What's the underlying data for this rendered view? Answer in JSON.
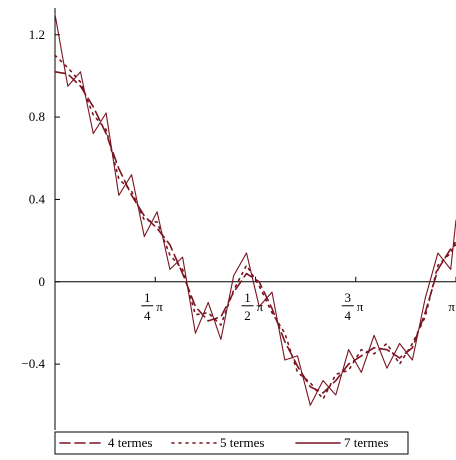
{
  "chart_data": {
    "type": "line",
    "title": "",
    "xlabel": "",
    "ylabel": "",
    "xlim": [
      0,
      3.1416
    ],
    "ylim": [
      -0.72,
      1.33
    ],
    "x_axis_crosses_y": 0,
    "y_ticks": [
      {
        "value": 1.2,
        "label": "1.2"
      },
      {
        "value": 0.8,
        "label": "0.8"
      },
      {
        "value": 0.4,
        "label": "0.4"
      },
      {
        "value": 0,
        "label": "0"
      },
      {
        "value": -0.4,
        "label": "−0.4"
      }
    ],
    "x_ticks": [
      {
        "value": 0.7854,
        "num": "1",
        "den": "4",
        "sym": "π"
      },
      {
        "value": 1.5708,
        "num": "1",
        "den": "2",
        "sym": "π"
      },
      {
        "value": 2.3562,
        "num": "3",
        "den": "4",
        "sym": "π"
      },
      {
        "value": 3.1416,
        "num": "",
        "den": "",
        "sym": "π"
      }
    ],
    "line_color": "#7a1420",
    "legend_position": "bottom",
    "series": [
      {
        "name": "4 termes",
        "style": "dash",
        "x": [
          0.0,
          0.1,
          0.2,
          0.3,
          0.4,
          0.5,
          0.6,
          0.7,
          0.8,
          0.9,
          1.0,
          1.1,
          1.2,
          1.3,
          1.4,
          1.5,
          1.6,
          1.7,
          1.8,
          1.9,
          2.0,
          2.1,
          2.2,
          2.3,
          2.4,
          2.5,
          2.6,
          2.7,
          2.8,
          2.9,
          3.0,
          3.1,
          3.1416
        ],
        "y": [
          1.02,
          1.01,
          0.95,
          0.85,
          0.72,
          0.55,
          0.42,
          0.32,
          0.26,
          0.18,
          0.04,
          -0.12,
          -0.19,
          -0.17,
          -0.05,
          0.04,
          0.0,
          -0.13,
          -0.29,
          -0.41,
          -0.51,
          -0.54,
          -0.48,
          -0.4,
          -0.36,
          -0.32,
          -0.33,
          -0.37,
          -0.32,
          -0.15,
          0.06,
          0.16,
          0.18
        ]
      },
      {
        "name": "5 termes",
        "style": "dot",
        "x": [
          0.0,
          0.1,
          0.2,
          0.3,
          0.4,
          0.5,
          0.6,
          0.7,
          0.8,
          0.9,
          1.0,
          1.1,
          1.2,
          1.3,
          1.4,
          1.5,
          1.6,
          1.7,
          1.8,
          1.9,
          2.0,
          2.1,
          2.2,
          2.3,
          2.4,
          2.5,
          2.6,
          2.7,
          2.8,
          2.9,
          3.0,
          3.1,
          3.1416
        ],
        "y": [
          1.1,
          1.04,
          0.97,
          0.81,
          0.74,
          0.5,
          0.44,
          0.3,
          0.29,
          0.13,
          0.06,
          -0.16,
          -0.15,
          -0.21,
          -0.04,
          0.08,
          -0.02,
          -0.15,
          -0.25,
          -0.44,
          -0.49,
          -0.57,
          -0.45,
          -0.43,
          -0.33,
          -0.35,
          -0.3,
          -0.4,
          -0.3,
          -0.17,
          0.08,
          0.14,
          0.2
        ]
      },
      {
        "name": "7 termes",
        "style": "solid",
        "x": [
          0.0,
          0.1,
          0.2,
          0.3,
          0.4,
          0.5,
          0.6,
          0.7,
          0.8,
          0.9,
          1.0,
          1.1,
          1.2,
          1.3,
          1.4,
          1.5,
          1.6,
          1.7,
          1.8,
          1.9,
          2.0,
          2.1,
          2.2,
          2.3,
          2.4,
          2.5,
          2.6,
          2.7,
          2.8,
          2.9,
          3.0,
          3.1,
          3.1416
        ],
        "y": [
          1.3,
          0.95,
          1.02,
          0.72,
          0.82,
          0.42,
          0.52,
          0.22,
          0.34,
          0.06,
          0.12,
          -0.25,
          -0.1,
          -0.28,
          0.03,
          0.14,
          -0.12,
          -0.05,
          -0.38,
          -0.36,
          -0.6,
          -0.48,
          -0.55,
          -0.33,
          -0.44,
          -0.26,
          -0.42,
          -0.3,
          -0.38,
          -0.08,
          0.14,
          0.06,
          0.3
        ]
      }
    ]
  }
}
